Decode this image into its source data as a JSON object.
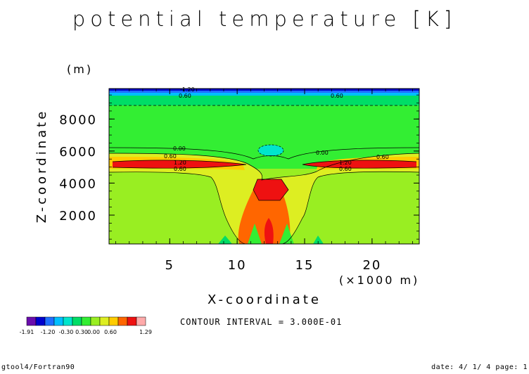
{
  "title": "potential temperature [K]",
  "chart_data": {
    "type": "heatmap",
    "title": "potential temperature [K]",
    "xlabel": "X-coordinate",
    "x_unit": "(×1000 m)",
    "ylabel": "Z-coordinate",
    "y_unit": "(m)",
    "xlim": [
      0.5,
      23.5
    ],
    "ylim": [
      200,
      9900
    ],
    "x_ticks": [
      "5",
      "10",
      "15",
      "20"
    ],
    "y_ticks": [
      "2000",
      "4000",
      "6000",
      "8000"
    ],
    "contour_labels": [
      "-1.20",
      "0.60",
      "0.00",
      "0.60",
      "1.20",
      "0.60",
      "0.00",
      "0.60",
      "1.20",
      "0.60",
      "0.60"
    ],
    "legend": {
      "colors": [
        "#6a0dad",
        "#0000cd",
        "#1f6fff",
        "#00bfff",
        "#00e5cc",
        "#00dd66",
        "#33ee33",
        "#99ee22",
        "#ddee22",
        "#ffcc00",
        "#ff6600",
        "#ee1111",
        "#ffaaaa"
      ],
      "tick_labels": [
        "-1.91",
        "-1.20",
        "-0.30",
        "0.60",
        "1.29"
      ],
      "extra_labels": [
        "0.30",
        "0.00"
      ]
    },
    "contour_interval": "CONTOUR INTERVAL = 3.000E-01"
  },
  "footer": {
    "left": "gtool4/Fortran90",
    "right": "date: 4/ 1/ 4 page: 1"
  }
}
